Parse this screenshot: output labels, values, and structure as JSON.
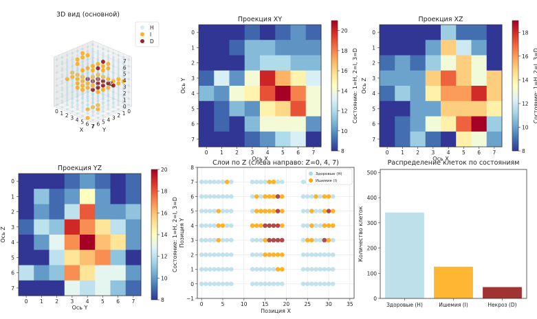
{
  "chart_data": [
    {
      "id": "view3d",
      "type": "scatter",
      "title": "3D вид (основной)",
      "xlabel": "X",
      "ylabel": "Y",
      "zlabel": "Z",
      "ticks": [
        "0",
        "1",
        "2",
        "3",
        "4",
        "5",
        "6",
        "7"
      ],
      "legend": [
        {
          "label": "H",
          "color": "#add8e6"
        },
        {
          "label": "I",
          "color": "#ffa500"
        },
        {
          "label": "D",
          "color": "#8b0000"
        }
      ],
      "legend_position": "top-right"
    },
    {
      "id": "xy",
      "type": "heatmap",
      "title": "Проекция XY",
      "xlabel": "Ось X",
      "ylabel": "Ось Y",
      "xticks": [
        "0",
        "1",
        "2",
        "3",
        "4",
        "5",
        "6",
        "7"
      ],
      "yticks": [
        "0",
        "1",
        "2",
        "3",
        "4",
        "5",
        "6",
        "7"
      ],
      "colorbar": {
        "label": "Состояние: 1=H, 2=I, 3=D",
        "range": [
          8,
          21
        ],
        "ticks": [
          "8",
          "10",
          "12",
          "14",
          "16",
          "18",
          "20"
        ]
      },
      "values": [
        [
          8,
          8,
          8,
          9,
          8,
          9,
          10,
          9
        ],
        [
          8,
          8,
          9,
          11,
          11,
          10,
          10,
          10
        ],
        [
          8,
          8,
          8,
          11,
          12,
          12,
          11,
          11
        ],
        [
          9,
          13,
          10,
          14,
          20,
          17,
          15,
          13
        ],
        [
          11,
          10,
          14,
          15,
          19,
          21,
          18,
          14
        ],
        [
          8,
          9,
          11,
          10,
          15,
          16,
          19,
          14
        ],
        [
          8,
          9,
          8,
          11,
          14,
          14,
          14,
          10
        ],
        [
          8,
          8,
          8,
          9,
          10,
          12,
          13,
          8
        ]
      ]
    },
    {
      "id": "xz",
      "type": "heatmap",
      "title": "Проекция XZ",
      "xlabel": "Ось X",
      "ylabel": "Ось Z",
      "xticks": [
        "0",
        "1",
        "2",
        "3",
        "4",
        "5",
        "6",
        "7"
      ],
      "yticks": [
        "0",
        "1",
        "2",
        "3",
        "4",
        "5",
        "6",
        "7"
      ],
      "colorbar": {
        "label": "Состояние: 1=H, 2=I, 3=D",
        "range": [
          8,
          19
        ],
        "ticks": [
          "8",
          "10",
          "12",
          "14",
          "16",
          "18"
        ]
      },
      "values": [
        [
          8,
          8,
          8,
          8,
          11,
          9,
          9,
          8
        ],
        [
          8,
          8,
          8,
          10,
          15,
          12,
          10,
          8
        ],
        [
          9,
          10,
          9,
          11,
          13,
          15,
          13,
          8
        ],
        [
          10,
          10,
          10,
          15,
          17,
          15,
          13,
          15
        ],
        [
          9,
          11,
          10,
          14,
          16,
          16,
          18,
          15
        ],
        [
          8,
          8,
          10,
          10,
          15,
          15,
          15,
          14
        ],
        [
          8,
          9,
          10,
          13,
          14,
          17,
          19,
          11
        ],
        [
          8,
          9,
          11,
          9,
          8,
          14,
          13,
          10
        ]
      ]
    },
    {
      "id": "yz",
      "type": "heatmap",
      "title": "Проекция YZ",
      "xlabel": "Ось Y",
      "ylabel": "Ось Z",
      "xticks": [
        "0",
        "1",
        "2",
        "3",
        "4",
        "5",
        "6",
        "7"
      ],
      "yticks": [
        "0",
        "1",
        "2",
        "3",
        "4",
        "5",
        "6",
        "7"
      ],
      "colorbar": {
        "label": "Состояние: 1=H, 2=I, 3=D",
        "range": [
          8,
          20
        ],
        "ticks": [
          "8",
          "10",
          "12",
          "14",
          "16",
          "18",
          "20"
        ]
      },
      "values": [
        [
          8,
          8,
          8,
          9,
          10,
          9,
          8,
          9
        ],
        [
          8,
          11,
          9,
          10,
          14,
          10,
          8,
          9
        ],
        [
          8,
          10,
          9,
          12,
          18,
          10,
          10,
          11
        ],
        [
          9,
          12,
          11,
          19,
          17,
          15,
          12,
          10
        ],
        [
          8,
          10,
          13,
          17,
          20,
          16,
          15,
          10
        ],
        [
          8,
          8,
          12,
          15,
          16,
          17,
          11,
          8
        ],
        [
          12,
          10,
          11,
          17,
          15,
          13,
          13,
          10
        ],
        [
          8,
          8,
          8,
          13,
          12,
          13,
          11,
          9
        ]
      ]
    },
    {
      "id": "layers",
      "type": "scatter",
      "title": "Слои по Z (слева направо: Z=0, 4, 7)",
      "xlabel": "Позиция X",
      "ylabel": "Позиция Y",
      "xlim": [
        -1,
        36
      ],
      "ylim": [
        -1,
        8
      ],
      "xticks": [
        0,
        5,
        10,
        15,
        20,
        25,
        30,
        35
      ],
      "yticks": [
        -1,
        0,
        1,
        2,
        3,
        4,
        5,
        6,
        7,
        8
      ],
      "grid": true,
      "legend": [
        {
          "label": "Здоровые (H)",
          "color": "#add8e6"
        },
        {
          "label": "Ишемия (I)",
          "color": "#ffa500"
        }
      ],
      "legend_position": "top-right",
      "layer_offsets": [
        0,
        12,
        24
      ],
      "layers": [
        {
          "z": 0,
          "rows": [
            "HHHHHHHH",
            "HHHHHHHH",
            "HHHHHHHH",
            "HHHHIHHH",
            "HHHHIIHH",
            "HHHHIHHH",
            "HHHHHHHH",
            "HHHHHHIH"
          ]
        },
        {
          "z": 4,
          "rows": [
            "HHHHHHHH",
            "HHHHHHII",
            "HHHIIIII",
            "HHHIDDDD",
            "IIIDDDDI",
            "HIIIIIDI",
            "HIHIIIDI",
            "HHHHIIHH"
          ]
        },
        {
          "z": 7,
          "rows": [
            "HHHHHHHH",
            "HHHHHHHH",
            "HHHHHHHH",
            "HIIHHDIH",
            "HHIHHIII",
            "HHIHHIDI",
            "HHHIHIIH",
            "HHHHHIHH"
          ]
        }
      ]
    },
    {
      "id": "dist",
      "type": "bar",
      "title": "Распределение клеток по состояниям",
      "xlabel": "",
      "ylabel": "Количество клеток",
      "categories": [
        "Здоровые (H)",
        "Ишемия (I)",
        "Некроз (D)"
      ],
      "values": [
        341,
        126,
        45
      ],
      "colors": [
        "#add8e6",
        "#ffa500",
        "#8b0000"
      ],
      "ylim": [
        0,
        512
      ],
      "yticks": [
        0,
        100,
        200,
        300,
        400,
        500
      ]
    }
  ]
}
